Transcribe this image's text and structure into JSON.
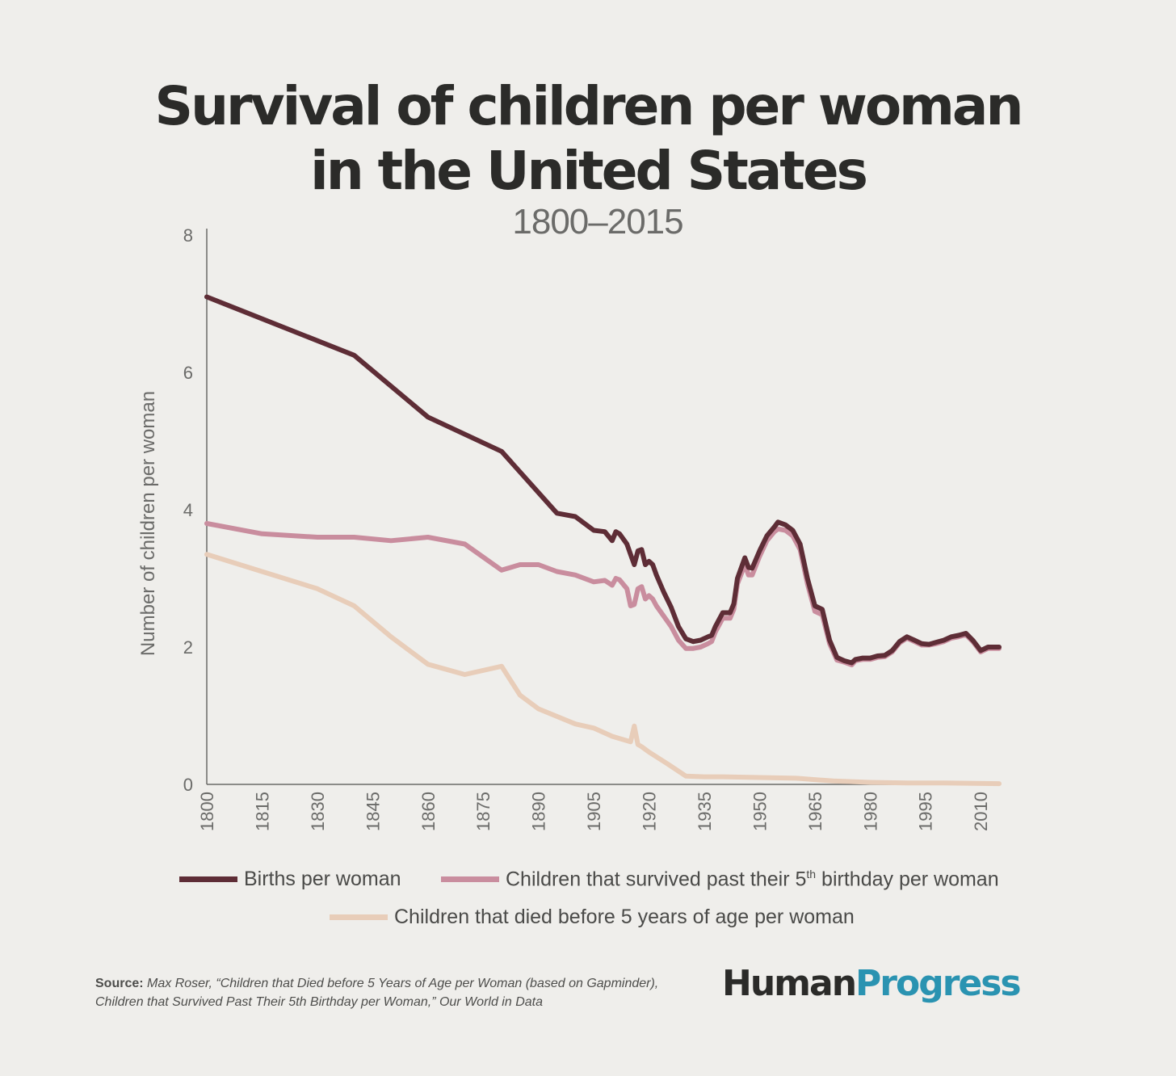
{
  "title_line1": "Survival of children per woman",
  "title_line2": "in the United States",
  "subtitle": "1800–2015",
  "logo": {
    "part1": "Human",
    "part2": "Progress"
  },
  "source": {
    "label": "Source:",
    "text": "Max Roser, “Children that Died before 5 Years of Age per Woman (based on Gapminder), Children that Survived Past Their 5th Birthday per Woman,” Our World in Data"
  },
  "legend": {
    "births": "Births per woman",
    "survived_pre": "Children that survived past their 5",
    "survived_sup": "th",
    "survived_post": " birthday per woman",
    "died": "Children that died before 5 years of age per woman"
  },
  "colors": {
    "births": "#5e2d36",
    "survived": "#c98d9e",
    "died": "#e8cdb9",
    "axis": "#6a6a68",
    "text": "#6b6b69"
  },
  "chart_data": {
    "type": "line",
    "ylabel": "Number of children per woman",
    "ylim": [
      0,
      8
    ],
    "xlim": [
      1800,
      2015
    ],
    "yticks": [
      0,
      2,
      4,
      6,
      8
    ],
    "xticks": [
      1800,
      1815,
      1830,
      1845,
      1860,
      1875,
      1890,
      1905,
      1920,
      1935,
      1950,
      1965,
      1980,
      1995,
      2010
    ],
    "series": [
      {
        "name": "Births per woman",
        "x": [
          1800,
          1840,
          1860,
          1880,
          1895,
          1900,
          1905,
          1908,
          1910,
          1911,
          1912,
          1914,
          1915,
          1916,
          1917,
          1918,
          1919,
          1920,
          1921,
          1922,
          1924,
          1926,
          1928,
          1930,
          1932,
          1934,
          1936,
          1937,
          1938,
          1940,
          1942,
          1943,
          1944,
          1946,
          1947,
          1948,
          1950,
          1952,
          1954,
          1955,
          1957,
          1959,
          1961,
          1963,
          1965,
          1967,
          1969,
          1971,
          1973,
          1975,
          1976,
          1977,
          1978,
          1980,
          1982,
          1984,
          1986,
          1988,
          1990,
          1992,
          1994,
          1996,
          1998,
          2000,
          2002,
          2004,
          2006,
          2008,
          2010,
          2012,
          2015
        ],
        "y": [
          7.1,
          6.25,
          5.35,
          4.85,
          3.95,
          3.9,
          3.7,
          3.68,
          3.55,
          3.68,
          3.65,
          3.5,
          3.35,
          3.2,
          3.4,
          3.42,
          3.2,
          3.25,
          3.2,
          3.05,
          2.8,
          2.58,
          2.3,
          2.12,
          2.08,
          2.1,
          2.15,
          2.17,
          2.3,
          2.5,
          2.5,
          2.63,
          3.0,
          3.3,
          3.16,
          3.15,
          3.4,
          3.62,
          3.75,
          3.82,
          3.78,
          3.7,
          3.5,
          3.0,
          2.6,
          2.55,
          2.1,
          1.85,
          1.8,
          1.77,
          1.82,
          1.83,
          1.84,
          1.84,
          1.87,
          1.88,
          1.95,
          2.08,
          2.15,
          2.1,
          2.05,
          2.04,
          2.07,
          2.1,
          2.15,
          2.17,
          2.2,
          2.09,
          1.95,
          2.0,
          2.0
        ]
      },
      {
        "name": "Children that survived past their 5th birthday per woman",
        "x": [
          1800,
          1815,
          1830,
          1840,
          1850,
          1860,
          1870,
          1880,
          1885,
          1890,
          1895,
          1900,
          1905,
          1908,
          1910,
          1911,
          1912,
          1914,
          1915,
          1916,
          1917,
          1918,
          1919,
          1920,
          1921,
          1922,
          1924,
          1926,
          1928,
          1930,
          1932,
          1934,
          1936,
          1937,
          1938,
          1940,
          1942,
          1943,
          1944,
          1946,
          1947,
          1948,
          1950,
          1952,
          1954,
          1955,
          1957,
          1959,
          1961,
          1963,
          1965,
          1967,
          1969,
          1971,
          1973,
          1975,
          1976,
          1977,
          1978,
          1980,
          1982,
          1984,
          1986,
          1988,
          1990,
          1992,
          1994,
          1996,
          1998,
          2000,
          2002,
          2004,
          2006,
          2008,
          2010,
          2012,
          2015
        ],
        "y": [
          3.8,
          3.65,
          3.6,
          3.6,
          3.55,
          3.6,
          3.5,
          3.12,
          3.2,
          3.2,
          3.1,
          3.05,
          2.95,
          2.97,
          2.9,
          3.0,
          2.98,
          2.85,
          2.6,
          2.62,
          2.85,
          2.88,
          2.7,
          2.75,
          2.7,
          2.6,
          2.45,
          2.3,
          2.1,
          1.98,
          1.98,
          2.0,
          2.05,
          2.08,
          2.22,
          2.42,
          2.42,
          2.55,
          2.92,
          3.2,
          3.05,
          3.05,
          3.32,
          3.55,
          3.68,
          3.72,
          3.7,
          3.62,
          3.42,
          2.92,
          2.52,
          2.47,
          2.05,
          1.81,
          1.78,
          1.74,
          1.8,
          1.81,
          1.82,
          1.82,
          1.85,
          1.86,
          1.93,
          2.06,
          2.13,
          2.08,
          2.03,
          2.03,
          2.05,
          2.08,
          2.13,
          2.15,
          2.18,
          2.07,
          1.93,
          1.98,
          1.98
        ]
      },
      {
        "name": "Children that died before 5 years of age per woman",
        "x": [
          1800,
          1815,
          1830,
          1840,
          1850,
          1860,
          1870,
          1880,
          1885,
          1890,
          1900,
          1905,
          1910,
          1915,
          1916,
          1917,
          1918,
          1920,
          1925,
          1930,
          1935,
          1940,
          1950,
          1960,
          1970,
          1980,
          1990,
          2000,
          2015
        ],
        "y": [
          3.35,
          3.1,
          2.85,
          2.6,
          2.15,
          1.75,
          1.6,
          1.72,
          1.3,
          1.1,
          0.88,
          0.82,
          0.7,
          0.62,
          0.85,
          0.58,
          0.55,
          0.47,
          0.3,
          0.12,
          0.11,
          0.11,
          0.1,
          0.09,
          0.05,
          0.03,
          0.02,
          0.02,
          0.01
        ]
      }
    ]
  }
}
